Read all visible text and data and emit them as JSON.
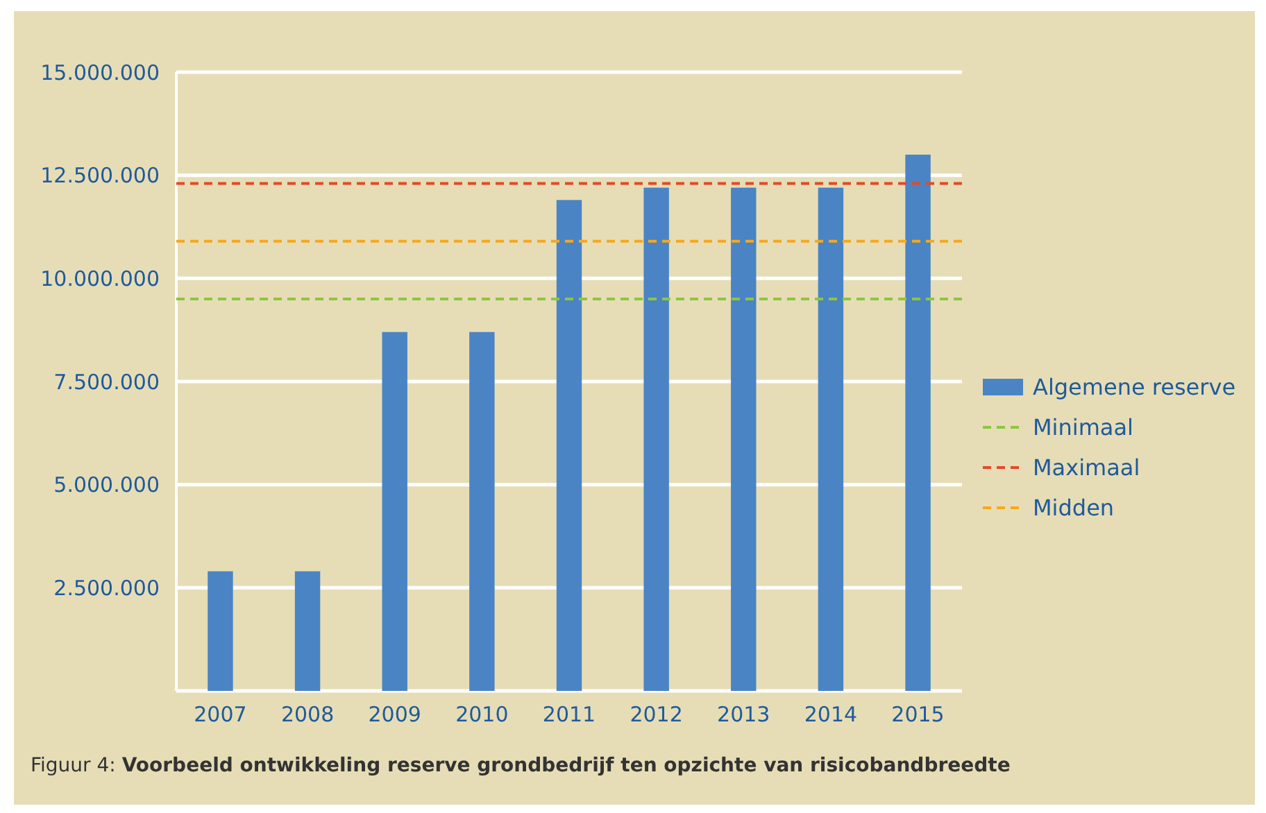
{
  "chart_data": {
    "type": "bar",
    "title": "Voorbeeld ontwikkeling reserve grondbedrijf ten opzichte van risicobandbreedte",
    "annotations": [
      "Figuur 4:"
    ],
    "categories": [
      "2007",
      "2008",
      "2009",
      "2010",
      "2011",
      "2012",
      "2013",
      "2014",
      "2015"
    ],
    "series": [
      {
        "name": "Algemene reserve",
        "color": "#4a84c4",
        "values": [
          2900000,
          2900000,
          8700000,
          8700000,
          11900000,
          12200000,
          12200000,
          12200000,
          13000000
        ]
      }
    ],
    "ylim": [
      0,
      15000000
    ],
    "yticks": [
      {
        "value": 2500000,
        "label": "2.500.000"
      },
      {
        "value": 5000000,
        "label": "5.000.000"
      },
      {
        "value": 7500000,
        "label": "7.500.000"
      },
      {
        "value": 10000000,
        "label": "10.000.000"
      },
      {
        "value": 12500000,
        "label": "12.500.000"
      },
      {
        "value": 15000000,
        "label": "15.000.000"
      }
    ],
    "ref_lines": [
      {
        "axis": "y",
        "value": 9500000,
        "label": "Minimaal",
        "color": "#8dc63f",
        "line_style": "dashed"
      },
      {
        "axis": "y",
        "value": 12300000,
        "label": "Maximaal",
        "color": "#e2492a",
        "line_style": "dashed"
      },
      {
        "axis": "y",
        "value": 10900000,
        "label": "Midden",
        "color": "#f6a81c",
        "line_style": "dashed"
      }
    ],
    "grid": "y",
    "legend": "right"
  }
}
